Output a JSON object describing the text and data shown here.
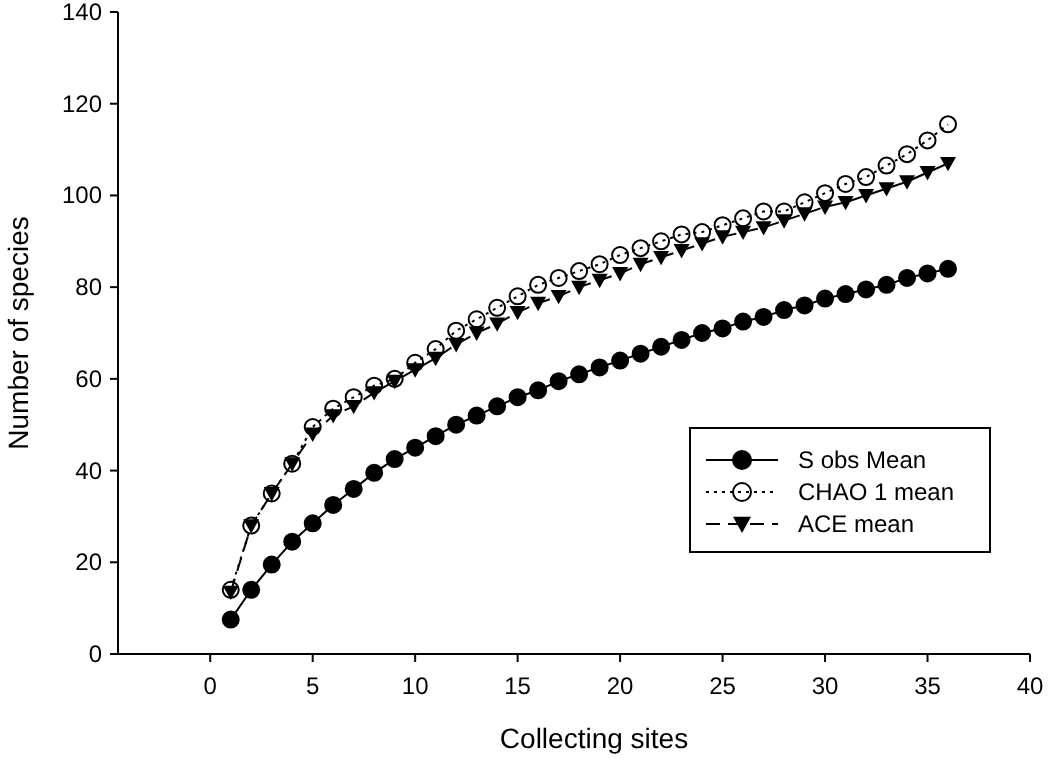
{
  "chart_data": {
    "type": "line",
    "xlabel": "Collecting sites",
    "ylabel": "Number of species",
    "x": [
      1,
      2,
      3,
      4,
      5,
      6,
      7,
      8,
      9,
      10,
      11,
      12,
      13,
      14,
      15,
      16,
      17,
      18,
      19,
      20,
      21,
      22,
      23,
      24,
      25,
      26,
      27,
      28,
      29,
      30,
      31,
      32,
      33,
      34,
      35,
      36
    ],
    "series": [
      {
        "name": "S obs Mean",
        "color": "#000000",
        "marker": "circle",
        "line_style": "solid",
        "values": [
          7.5,
          14,
          19.5,
          24.5,
          28.5,
          32.5,
          36,
          39.5,
          42.5,
          45,
          47.5,
          50,
          52,
          54,
          56,
          57.5,
          59.5,
          61,
          62.5,
          64,
          65.5,
          67,
          68.5,
          70,
          71,
          72.5,
          73.5,
          75,
          76,
          77.5,
          78.5,
          79.5,
          80.5,
          82,
          83,
          84
        ]
      },
      {
        "name": "CHAO 1 mean",
        "color": "#000000",
        "marker": "open-circle",
        "line_style": "dotted",
        "values": [
          14,
          28,
          35,
          41.5,
          49.5,
          53.5,
          56,
          58.5,
          60,
          63.5,
          66.5,
          70.5,
          73,
          75.5,
          78,
          80.5,
          82,
          83.5,
          85,
          87,
          88.5,
          90,
          91.5,
          92,
          93.5,
          95,
          96.5,
          96.5,
          98.5,
          100.5,
          102.5,
          104,
          106.5,
          109,
          112,
          115.5
        ]
      },
      {
        "name": "ACE mean",
        "color": "#000000",
        "marker": "triangle",
        "line_style": "dashed",
        "values": [
          13.5,
          28,
          35,
          41.5,
          48,
          52,
          54,
          57,
          59.5,
          62,
          64.5,
          67.5,
          70,
          72,
          74.5,
          76.5,
          78,
          80,
          81.5,
          83,
          85,
          86.5,
          88,
          89.5,
          91,
          92,
          93,
          94.5,
          96,
          97.5,
          98.5,
          100,
          101.5,
          103,
          105,
          107
        ]
      }
    ],
    "xlim": [
      -4.5,
      40
    ],
    "xticks": [
      0,
      5,
      10,
      15,
      20,
      25,
      30,
      35,
      40
    ],
    "ylim": [
      0,
      140
    ],
    "yticks": [
      0,
      20,
      40,
      60,
      80,
      100,
      120,
      140
    ],
    "grid": false,
    "legend": "bottom right"
  }
}
